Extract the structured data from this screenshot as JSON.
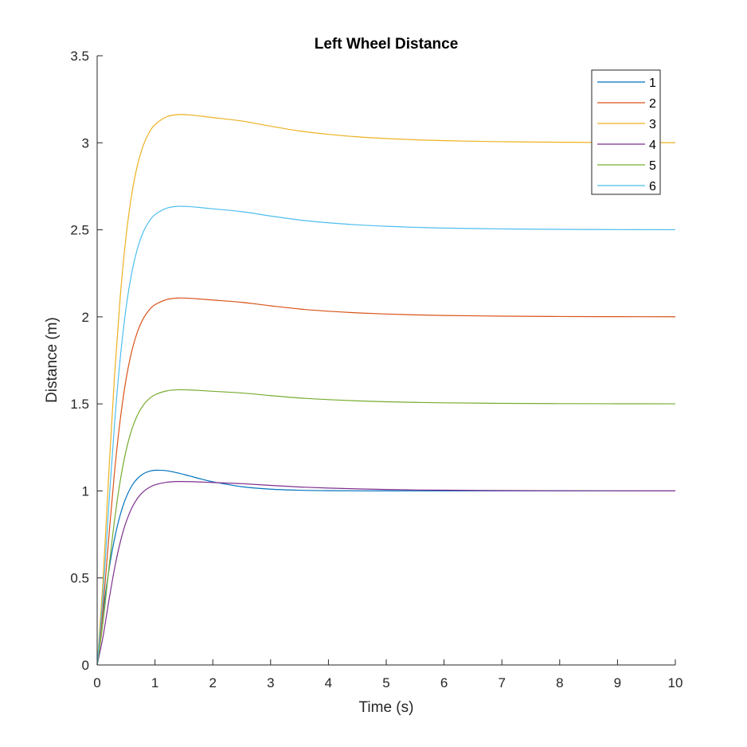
{
  "chart_data": {
    "type": "line",
    "title": "Left Wheel Distance",
    "xlabel": "Time (s)",
    "ylabel": "Distance (m)",
    "xlim": [
      0,
      10
    ],
    "ylim": [
      0,
      3.5
    ],
    "xticks": [
      0,
      1,
      2,
      3,
      4,
      5,
      6,
      7,
      8,
      9,
      10
    ],
    "yticks": [
      0,
      0.5,
      1,
      1.5,
      2,
      2.5,
      3,
      3.5
    ],
    "xtick_labels": [
      "0",
      "1",
      "2",
      "3",
      "4",
      "5",
      "6",
      "7",
      "8",
      "9",
      "10"
    ],
    "ytick_labels": [
      "0",
      "0.5",
      "1",
      "1.5",
      "2",
      "2.5",
      "3",
      "3.5"
    ],
    "grid": false,
    "legend_position": "top-right",
    "x": [
      0,
      0.1,
      0.2,
      0.3,
      0.4,
      0.5,
      0.6,
      0.7,
      0.8,
      0.9,
      1.0,
      1.2,
      1.4,
      1.6,
      1.8,
      2.0,
      2.5,
      3.0,
      3.5,
      4.0,
      4.5,
      5.0,
      5.5,
      6.0,
      7.0,
      8.0,
      9.0,
      10.0
    ],
    "series": [
      {
        "name": "1",
        "color": "#0072BD",
        "values": [
          0,
          0.2963,
          0.5377,
          0.7247,
          0.8635,
          0.9622,
          1.0294,
          1.0726,
          1.0987,
          1.1127,
          1.1186,
          1.1161,
          1.1028,
          1.0858,
          1.0684,
          1.0525,
          1.0243,
          1.0101,
          1.0039,
          1.0014,
          1.0005,
          1.0002,
          1.0,
          1.0,
          1.0,
          1.0,
          1.0,
          1.0
        ]
      },
      {
        "name": "2",
        "color": "#D95319",
        "values": [
          0,
          0.3203,
          0.7277,
          1.1066,
          1.4119,
          1.6413,
          1.805,
          1.9172,
          1.9915,
          2.0394,
          2.0695,
          2.0993,
          2.108,
          2.1067,
          2.1019,
          2.0965,
          2.0834,
          2.0635,
          2.0452,
          2.0323,
          2.0229,
          2.0162,
          2.0115,
          2.0081,
          2.004,
          2.002,
          2.001,
          2.0005
        ]
      },
      {
        "name": "3",
        "color": "#EDB120",
        "values": [
          0,
          0.4805,
          1.0916,
          1.6599,
          2.1179,
          2.462,
          2.7075,
          2.8758,
          2.9873,
          3.0591,
          3.1043,
          3.1489,
          3.162,
          3.16,
          3.1529,
          3.1448,
          3.1251,
          3.0953,
          3.0678,
          3.0485,
          3.0344,
          3.0243,
          3.0172,
          3.0122,
          3.0061,
          3.003,
          3.0015,
          3.0008
        ]
      },
      {
        "name": "4",
        "color": "#7E2F8E",
        "values": [
          0,
          0.1602,
          0.3639,
          0.5533,
          0.706,
          0.8207,
          0.9025,
          0.9586,
          0.9958,
          1.0197,
          1.0348,
          1.0496,
          1.054,
          1.0533,
          1.051,
          1.0483,
          1.0417,
          1.0318,
          1.0226,
          1.0162,
          1.0115,
          1.0081,
          1.0057,
          1.0041,
          1.002,
          1.001,
          1.0005,
          1.0003
        ]
      },
      {
        "name": "5",
        "color": "#77AC30",
        "values": [
          0,
          0.2403,
          0.5458,
          0.83,
          1.059,
          1.231,
          1.3538,
          1.4379,
          1.4937,
          1.5296,
          1.5521,
          1.5745,
          1.581,
          1.58,
          1.5764,
          1.5724,
          1.5626,
          1.5476,
          1.5339,
          1.5243,
          1.5172,
          1.5122,
          1.5086,
          1.5061,
          1.503,
          1.5015,
          1.5008,
          1.5004
        ]
      },
      {
        "name": "6",
        "color": "#4DBEEE",
        "values": [
          0,
          0.4004,
          0.9097,
          1.3833,
          1.7649,
          2.0517,
          2.2563,
          2.3965,
          2.4894,
          2.5493,
          2.5869,
          2.6241,
          2.635,
          2.6333,
          2.6274,
          2.6207,
          2.6043,
          2.5794,
          2.5565,
          2.5404,
          2.5287,
          2.5203,
          2.5143,
          2.5102,
          2.5051,
          2.5025,
          2.5013,
          2.5006
        ]
      }
    ]
  }
}
